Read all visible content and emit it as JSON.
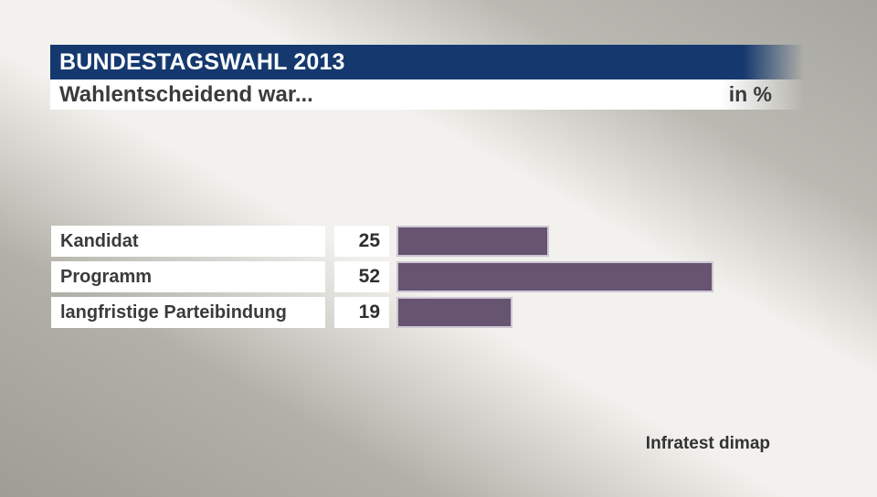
{
  "header": {
    "title": "BUNDESTAGSWAHL 2013",
    "subtitle": "Wahlentscheidend war...",
    "unit_label": "in %"
  },
  "footer": {
    "source": "Infratest dimap"
  },
  "colors": {
    "header_blue": "#15396f",
    "bar_purple": "#665471",
    "bar_border": "#cdc6d4",
    "text_dark": "#3b3b3b"
  },
  "chart_data": {
    "type": "bar",
    "orientation": "horizontal",
    "title": "Wahlentscheidend war...",
    "unit": "in %",
    "categories": [
      "Kandidat",
      "Programm",
      "langfristige Parteibindung"
    ],
    "values": [
      25,
      52,
      19
    ],
    "xlim": [
      0,
      60
    ],
    "grid": false,
    "legend": false,
    "source": "Infratest dimap"
  }
}
